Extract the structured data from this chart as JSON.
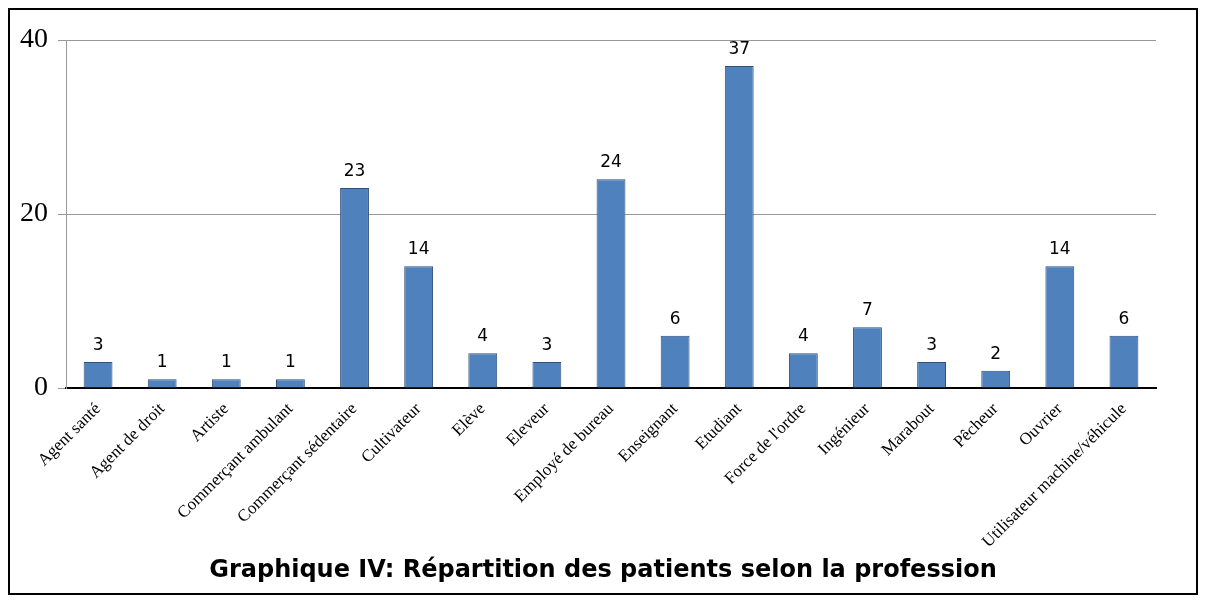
{
  "chart_data": {
    "type": "bar",
    "title": "Graphique IV: Répartition des patients selon la profession",
    "categories": [
      "Agent santé",
      "Agent de droit",
      "Artiste",
      "Commerçant ambulant",
      "Commerçant sédentaire",
      "Cultivateur",
      "Elève",
      "Eleveur",
      "Employé de bureau",
      "Enseignant",
      "Etudiant",
      "Force de l'ordre",
      "Ingénieur",
      "Marabout",
      "Pêcheur",
      "Ouvrier",
      "Utilisateur machine/véhicule"
    ],
    "values": [
      3,
      1,
      1,
      1,
      23,
      14,
      4,
      3,
      24,
      6,
      37,
      4,
      7,
      3,
      2,
      14,
      6
    ],
    "color": "#4f81bd",
    "ylim": [
      0,
      40
    ],
    "yticks": [
      0,
      20,
      40
    ],
    "grid": "y",
    "data_labels": true
  }
}
